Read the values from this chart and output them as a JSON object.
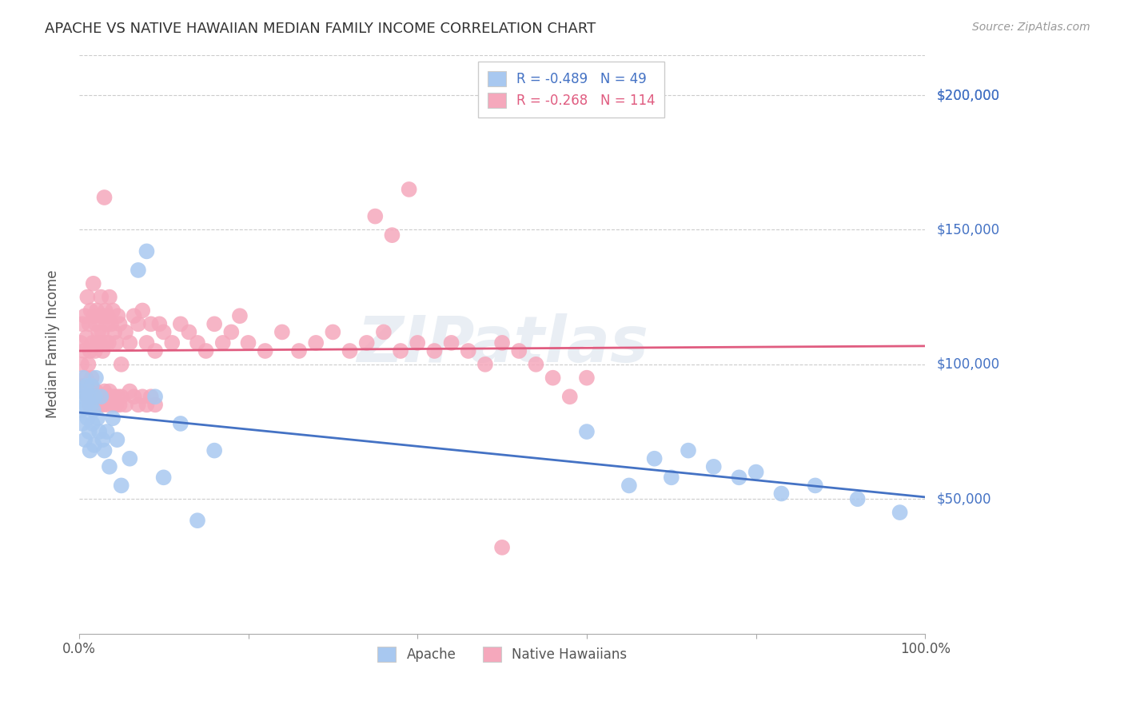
{
  "title": "APACHE VS NATIVE HAWAIIAN MEDIAN FAMILY INCOME CORRELATION CHART",
  "source": "Source: ZipAtlas.com",
  "ylabel": "Median Family Income",
  "legend_apache": "R = -0.489   N = 49",
  "legend_nh": "R = -0.268   N = 114",
  "legend_label_apache": "Apache",
  "legend_label_nh": "Native Hawaiians",
  "apache_color": "#A8C8F0",
  "nh_color": "#F5A8BC",
  "apache_line_color": "#4472C4",
  "nh_line_color": "#E05C80",
  "watermark": "ZIPatlas",
  "ytick_labels": [
    "$50,000",
    "$100,000",
    "$150,000",
    "$200,000"
  ],
  "ytick_values": [
    50000,
    100000,
    150000,
    200000
  ],
  "ymin": 0,
  "ymax": 215000,
  "xmin": 0.0,
  "xmax": 1.0,
  "apache_x": [
    0.002,
    0.003,
    0.004,
    0.005,
    0.006,
    0.007,
    0.008,
    0.009,
    0.01,
    0.011,
    0.012,
    0.013,
    0.014,
    0.015,
    0.016,
    0.017,
    0.018,
    0.019,
    0.02,
    0.022,
    0.024,
    0.026,
    0.028,
    0.03,
    0.033,
    0.036,
    0.04,
    0.045,
    0.05,
    0.06,
    0.07,
    0.08,
    0.09,
    0.1,
    0.12,
    0.14,
    0.16,
    0.6,
    0.65,
    0.68,
    0.7,
    0.72,
    0.75,
    0.78,
    0.8,
    0.83,
    0.87,
    0.92,
    0.97
  ],
  "apache_y": [
    90000,
    83000,
    78000,
    95000,
    88000,
    72000,
    85000,
    92000,
    80000,
    88000,
    75000,
    68000,
    85000,
    92000,
    78000,
    83000,
    70000,
    88000,
    95000,
    80000,
    75000,
    88000,
    72000,
    68000,
    75000,
    62000,
    80000,
    72000,
    55000,
    65000,
    135000,
    142000,
    88000,
    58000,
    78000,
    42000,
    68000,
    75000,
    55000,
    65000,
    58000,
    68000,
    62000,
    58000,
    60000,
    52000,
    55000,
    50000,
    45000
  ],
  "nh_x": [
    0.002,
    0.003,
    0.004,
    0.005,
    0.006,
    0.007,
    0.008,
    0.009,
    0.01,
    0.011,
    0.012,
    0.013,
    0.014,
    0.015,
    0.016,
    0.017,
    0.018,
    0.019,
    0.02,
    0.021,
    0.022,
    0.023,
    0.024,
    0.025,
    0.026,
    0.027,
    0.028,
    0.029,
    0.03,
    0.031,
    0.032,
    0.033,
    0.034,
    0.035,
    0.036,
    0.038,
    0.04,
    0.042,
    0.044,
    0.046,
    0.048,
    0.05,
    0.055,
    0.06,
    0.065,
    0.07,
    0.075,
    0.08,
    0.085,
    0.09,
    0.095,
    0.1,
    0.11,
    0.12,
    0.13,
    0.14,
    0.15,
    0.16,
    0.17,
    0.18,
    0.19,
    0.2,
    0.22,
    0.24,
    0.26,
    0.28,
    0.3,
    0.32,
    0.34,
    0.36,
    0.38,
    0.4,
    0.42,
    0.44,
    0.46,
    0.48,
    0.5,
    0.52,
    0.54,
    0.56,
    0.58,
    0.6,
    0.35,
    0.37,
    0.39,
    0.01,
    0.012,
    0.014,
    0.016,
    0.018,
    0.02,
    0.022,
    0.024,
    0.026,
    0.028,
    0.03,
    0.032,
    0.034,
    0.036,
    0.038,
    0.04,
    0.042,
    0.044,
    0.046,
    0.048,
    0.05,
    0.055,
    0.06,
    0.065,
    0.07,
    0.075,
    0.08,
    0.085,
    0.09,
    0.5
  ],
  "nh_y": [
    108000,
    100000,
    115000,
    92000,
    105000,
    118000,
    95000,
    110000,
    125000,
    100000,
    115000,
    105000,
    120000,
    95000,
    108000,
    130000,
    118000,
    105000,
    115000,
    120000,
    108000,
    112000,
    118000,
    108000,
    125000,
    112000,
    105000,
    118000,
    162000,
    120000,
    108000,
    115000,
    118000,
    108000,
    125000,
    115000,
    120000,
    112000,
    108000,
    118000,
    115000,
    100000,
    112000,
    108000,
    118000,
    115000,
    120000,
    108000,
    115000,
    105000,
    115000,
    112000,
    108000,
    115000,
    112000,
    108000,
    105000,
    115000,
    108000,
    112000,
    118000,
    108000,
    105000,
    112000,
    105000,
    108000,
    112000,
    105000,
    108000,
    112000,
    105000,
    108000,
    105000,
    108000,
    105000,
    100000,
    108000,
    105000,
    100000,
    95000,
    88000,
    95000,
    155000,
    148000,
    165000,
    88000,
    85000,
    92000,
    88000,
    85000,
    90000,
    88000,
    85000,
    88000,
    85000,
    90000,
    88000,
    85000,
    90000,
    88000,
    85000,
    88000,
    85000,
    88000,
    85000,
    88000,
    85000,
    90000,
    88000,
    85000,
    88000,
    85000,
    88000,
    85000,
    32000
  ]
}
